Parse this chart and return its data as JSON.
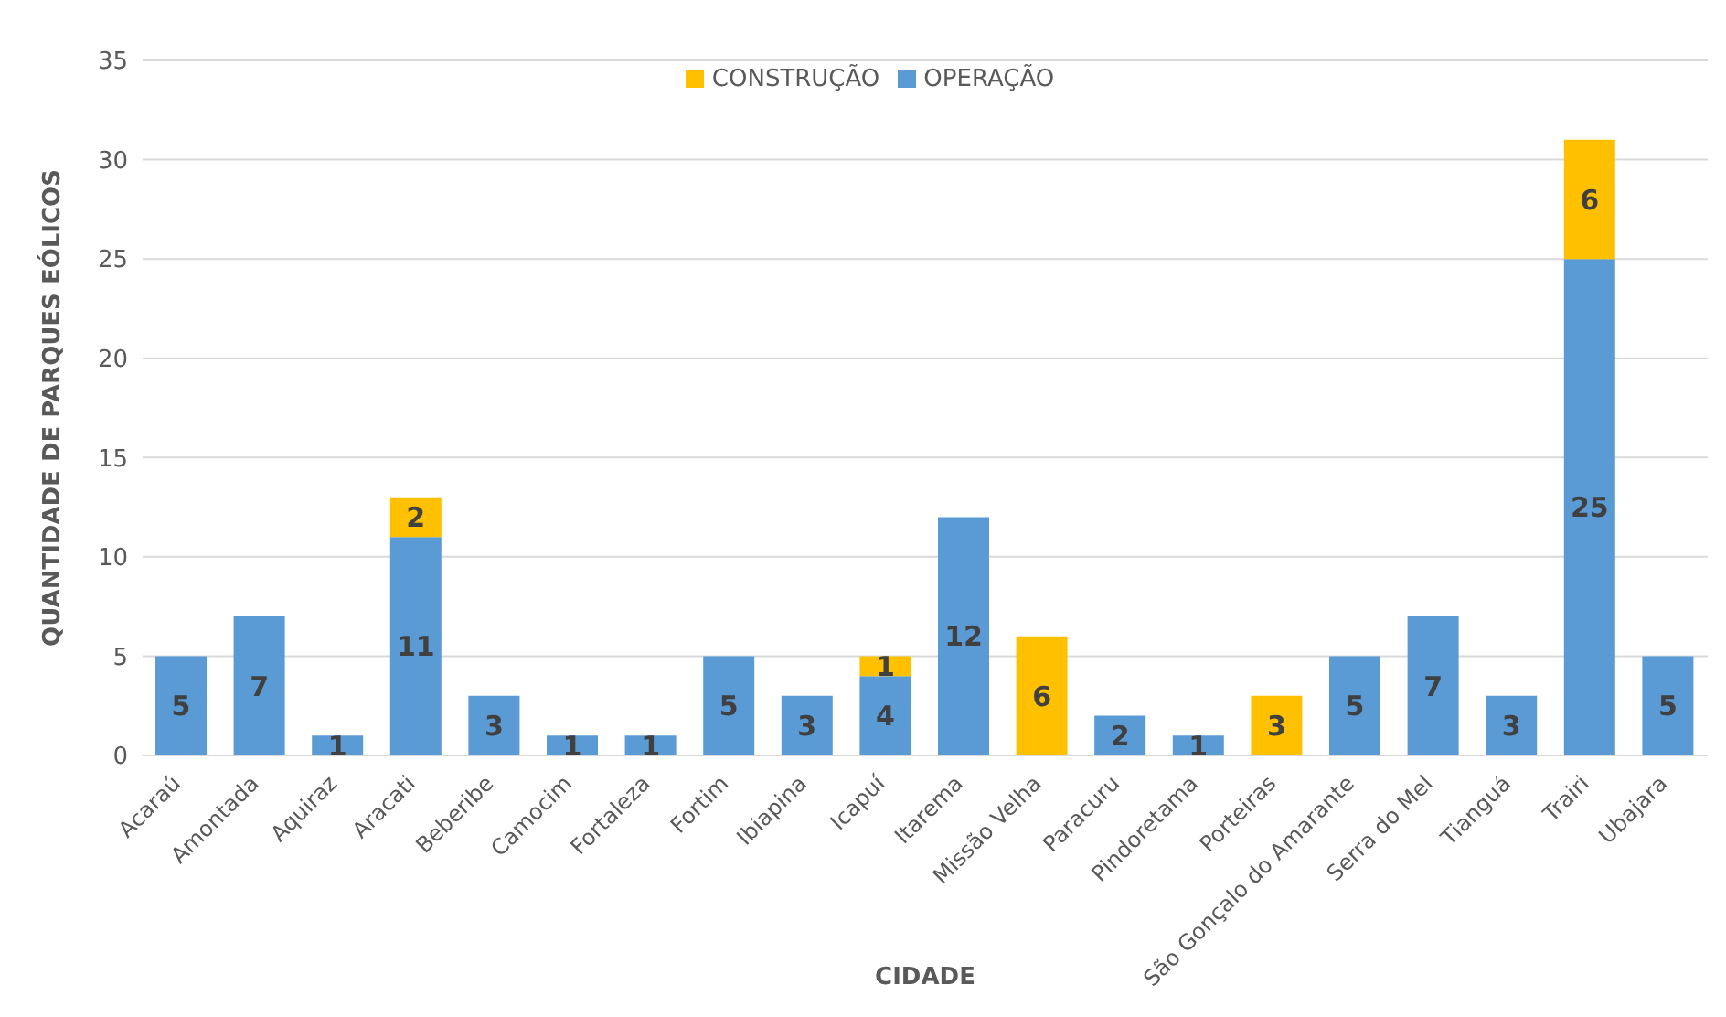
{
  "chart_data": {
    "type": "bar",
    "stacked": true,
    "xlabel": "CIDADE",
    "ylabel": "QUANTIDADE DE PARQUES EÓLICOS",
    "categories": [
      "Acaraú",
      "Amontada",
      "Aquiraz",
      "Aracati",
      "Beberibe",
      "Camocim",
      "Fortaleza",
      "Fortim",
      "Ibiapina",
      "Icapuí",
      "Itarema",
      "Missão Velha",
      "Paracuru",
      "Pindoretama",
      "Porteiras",
      "São Gonçalo do Amarante",
      "Serra do Mel",
      "Tianguá",
      "Trairi",
      "Ubajara"
    ],
    "series": [
      {
        "name": "OPERAÇÃO",
        "color": "#5b9bd5",
        "values": [
          5,
          7,
          1,
          11,
          3,
          1,
          1,
          5,
          3,
          4,
          12,
          null,
          2,
          1,
          null,
          5,
          7,
          3,
          25,
          5
        ]
      },
      {
        "name": "CONSTRUÇÃO",
        "color": "#ffc000",
        "values": [
          null,
          null,
          null,
          2,
          null,
          null,
          null,
          null,
          null,
          1,
          null,
          6,
          null,
          null,
          3,
          null,
          null,
          null,
          6,
          null
        ]
      }
    ],
    "ylim": [
      0,
      35
    ],
    "yticks": [
      0,
      5,
      10,
      15,
      20,
      25,
      30,
      35
    ],
    "grid": "y",
    "legend": "top",
    "data_labels": true
  }
}
